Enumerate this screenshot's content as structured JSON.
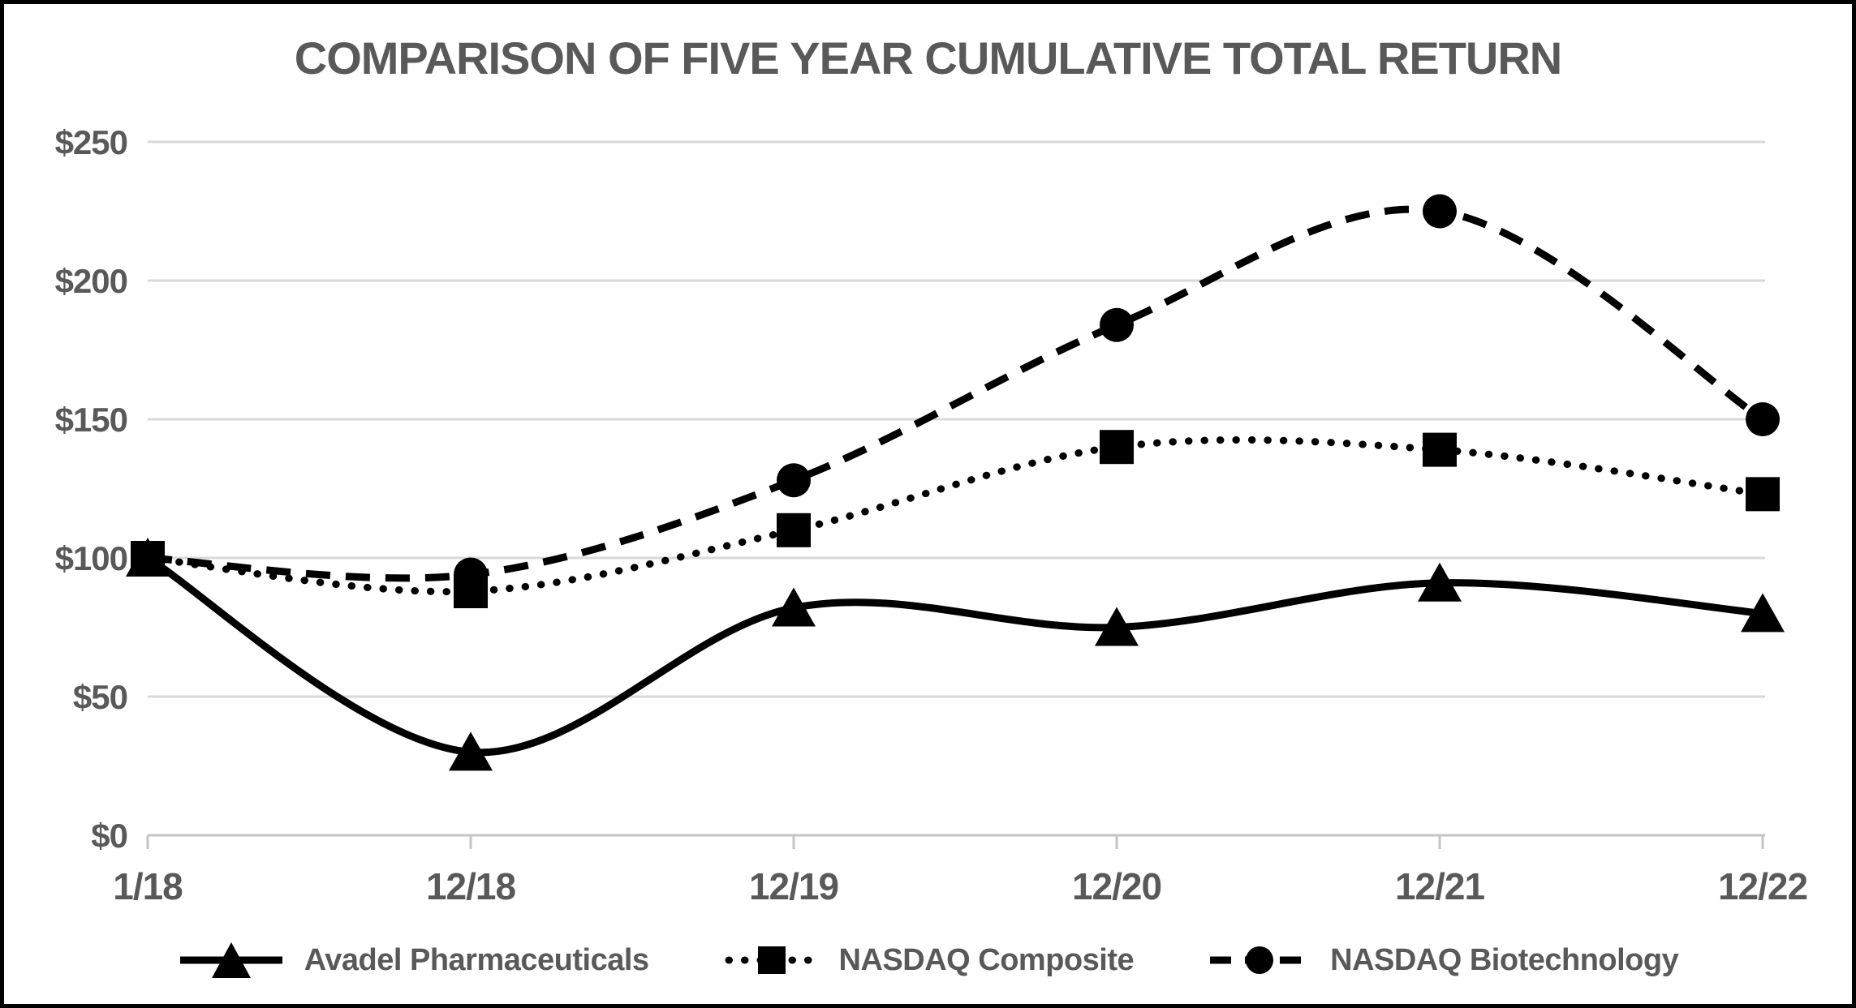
{
  "chart_data": {
    "type": "line",
    "title": "COMPARISON OF FIVE YEAR CUMULATIVE TOTAL RETURN",
    "categories": [
      "1/18",
      "12/18",
      "12/19",
      "12/20",
      "12/21",
      "12/22"
    ],
    "series": [
      {
        "name": "Avadel Pharmaceuticals",
        "style": "solid",
        "marker": "triangle",
        "values": [
          100,
          30,
          82,
          75,
          91,
          80
        ]
      },
      {
        "name": "NASDAQ Composite",
        "style": "dotted",
        "marker": "square",
        "values": [
          100,
          88,
          110,
          140,
          139,
          123
        ]
      },
      {
        "name": "NASDAQ Biotechnology",
        "style": "dashed",
        "marker": "circle",
        "values": [
          100,
          94,
          128,
          184,
          225,
          150
        ]
      }
    ],
    "ylim": [
      0,
      250
    ],
    "ytick_step": 50,
    "y_tick_prefix": "$",
    "y_tick_labels": [
      "$0",
      "$50",
      "$100",
      "$150",
      "$200",
      "$250"
    ],
    "grid": "horizontal",
    "smoothed_lines": true,
    "legend_position": "bottom",
    "colors": {
      "series": "#000000",
      "text": "#595959",
      "gridline": "#d9d9d9",
      "axis": "#c4c4c4",
      "background": "#ffffff",
      "frame": "#000000"
    }
  }
}
